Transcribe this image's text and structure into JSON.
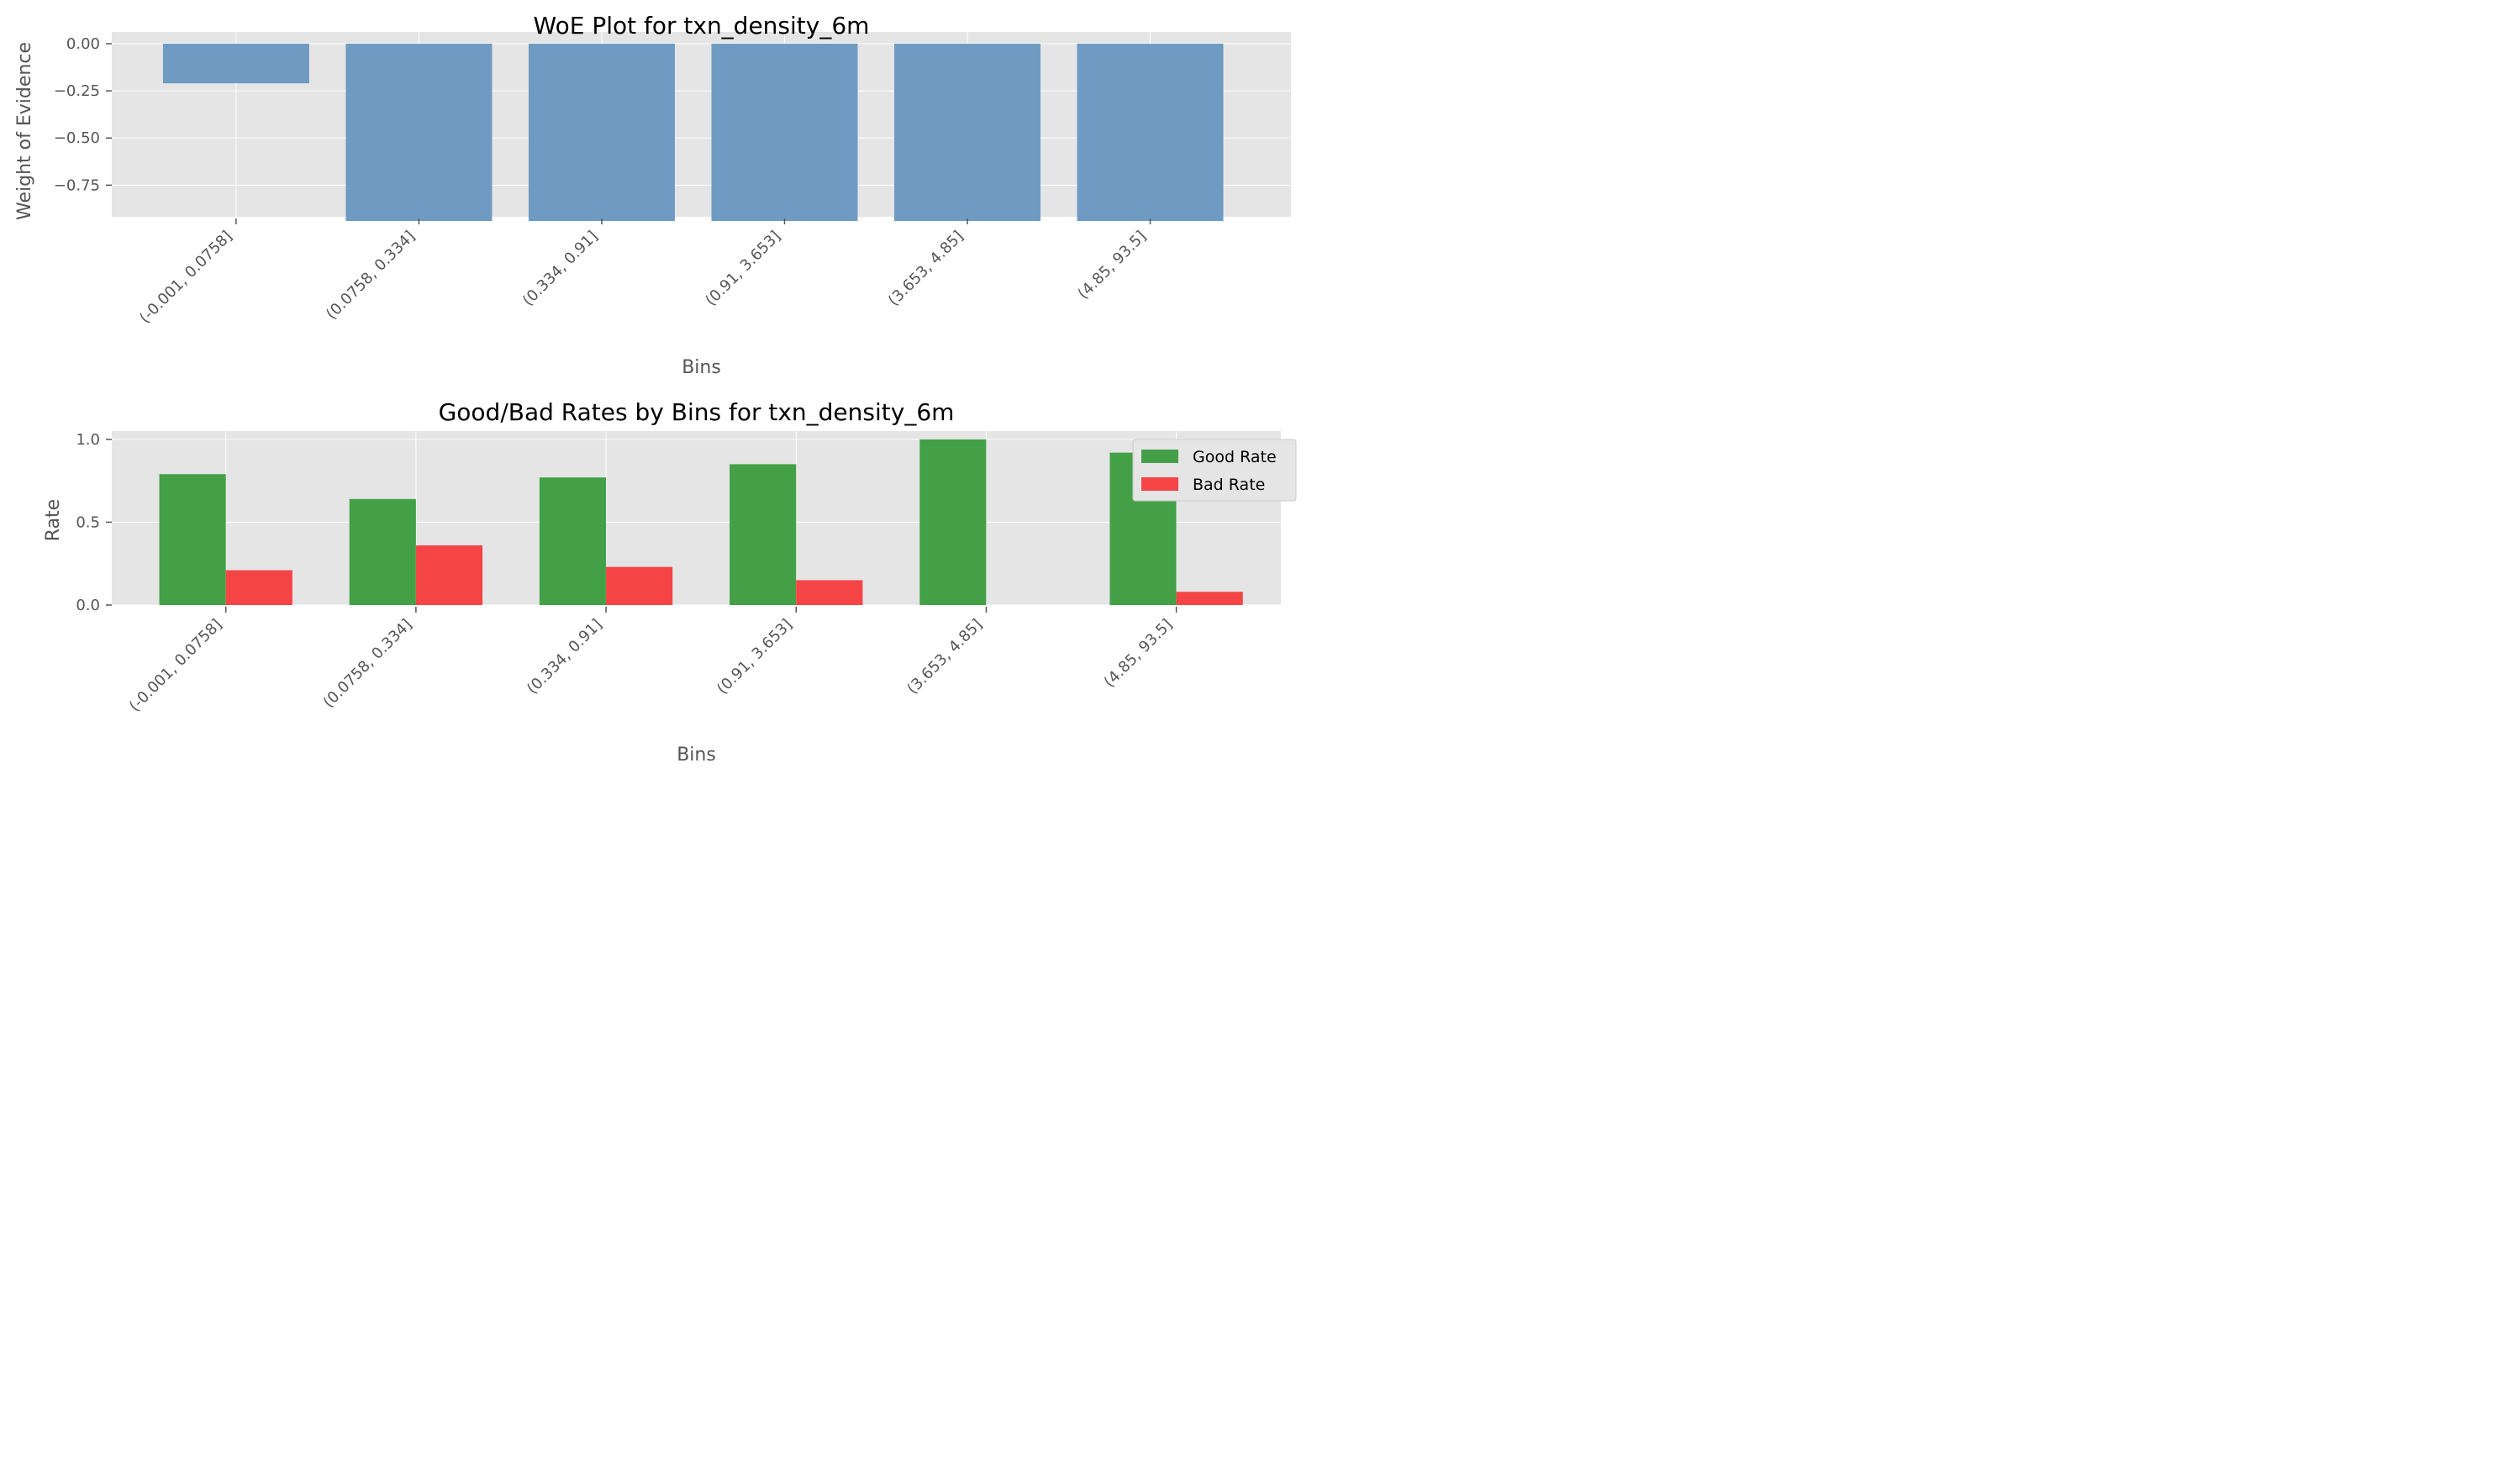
{
  "chart_data": [
    {
      "type": "bar",
      "title": "WoE Plot for txn_density_6m",
      "xlabel": "Bins",
      "ylabel": "Weight of Evidence",
      "categories": [
        "(-0.001, 0.0758]",
        "(0.0758, 0.334]",
        "(0.334, 0.91]",
        "(0.91, 3.653]",
        "(3.653, 4.85]",
        "(4.85, 93.5]"
      ],
      "values": [
        -0.21,
        -0.94,
        -0.94,
        -0.94,
        -0.94,
        -0.94
      ],
      "ylim": [
        -0.98,
        0.0
      ],
      "yticks": [
        0.0,
        -0.25,
        -0.5,
        -0.75
      ],
      "ytick_labels": [
        "0.00",
        "−0.25",
        "−0.50",
        "−0.75"
      ],
      "grid": true,
      "colors": {
        "bar": "#6f9bc3",
        "panel": "#e5e5e5",
        "grid": "#ffffff"
      }
    },
    {
      "type": "bar",
      "title": "Good/Bad Rates by Bins for txn_density_6m",
      "xlabel": "Bins",
      "ylabel": "Rate",
      "categories": [
        "(-0.001, 0.0758]",
        "(0.0758, 0.334]",
        "(0.334, 0.91]",
        "(0.91, 3.653]",
        "(3.653, 4.85]",
        "(4.85, 93.5]"
      ],
      "series": [
        {
          "name": "Good Rate",
          "values": [
            0.79,
            0.64,
            0.77,
            0.85,
            1.0,
            0.92
          ],
          "color": "#43a047"
        },
        {
          "name": "Bad Rate",
          "values": [
            0.21,
            0.36,
            0.23,
            0.15,
            0.0,
            0.08
          ],
          "color": "#f44445"
        }
      ],
      "ylim": [
        0.0,
        1.05
      ],
      "yticks": [
        0.0,
        0.5,
        1.0
      ],
      "ytick_labels": [
        "0.0",
        "0.5",
        "1.0"
      ],
      "legend": "top-right",
      "grid": true,
      "colors": {
        "panel": "#e5e5e5",
        "grid": "#ffffff"
      }
    }
  ]
}
